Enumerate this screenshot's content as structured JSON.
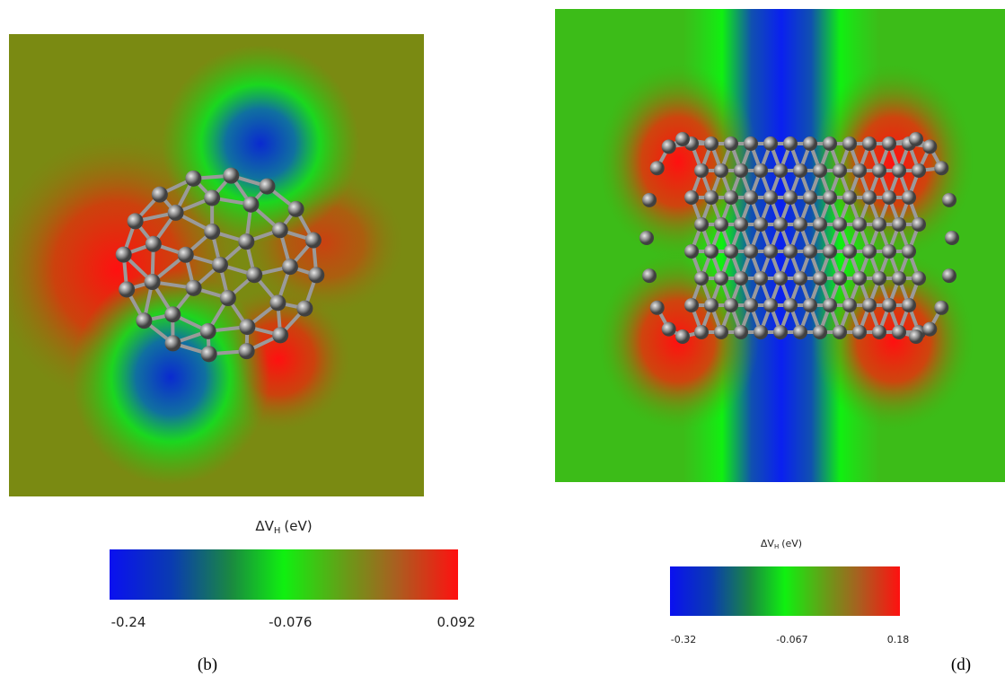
{
  "panels": [
    {
      "label": "(b)",
      "colorbar": {
        "title": {
          "main": "ΔV",
          "sub": "H",
          "unit": "(eV)"
        },
        "ticks": [
          -0.24,
          -0.076,
          0.092
        ]
      }
    },
    {
      "label": "(d)",
      "colorbar": {
        "title": {
          "main": "ΔV",
          "sub": "H",
          "unit": "(eV)"
        },
        "ticks": [
          -0.32,
          -0.067,
          0.18
        ]
      }
    }
  ]
}
